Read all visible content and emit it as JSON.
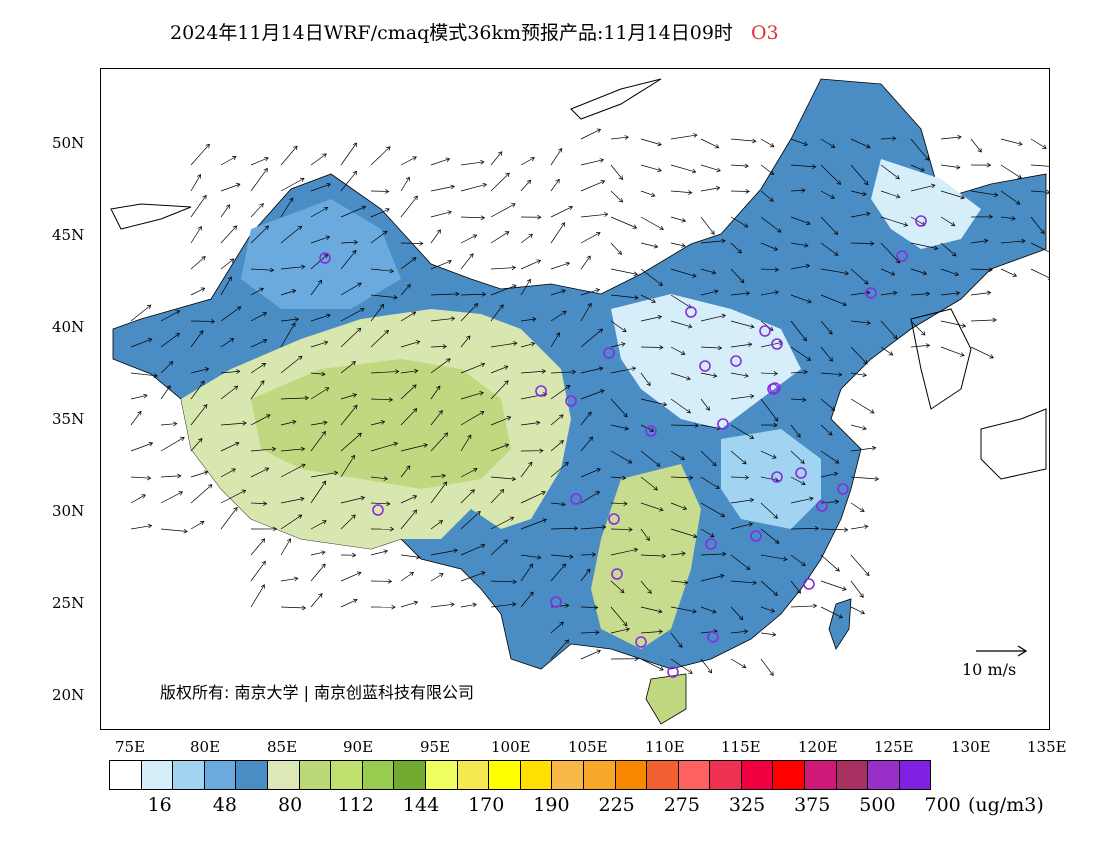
{
  "title": {
    "main": "2024年11月14日WRF/cmaq模式36km预报产品:11月14日09时",
    "species": "O3"
  },
  "map": {
    "lat_labels": [
      "50N",
      "45N",
      "40N",
      "35N",
      "30N",
      "25N",
      "20N"
    ],
    "lon_labels": [
      "75E",
      "80E",
      "85E",
      "90E",
      "95E",
      "100E",
      "105E",
      "110E",
      "115E",
      "120E",
      "125E",
      "130E",
      "135E"
    ],
    "copyright": "版权所有: 南京大学 | 南京创蓝科技有限公司",
    "wind_reference": "10 m/s",
    "colors": {
      "deep_blue": "#4a8cc4",
      "mid_blue": "#6aaade",
      "light_blue": "#a0d4f0",
      "pale_blue": "#d6eefa",
      "pale_green": "#d8e6b0",
      "green": "#c0d880",
      "dark_green": "#b0cc70",
      "station_marker": "#8a2be2",
      "ocean": "#ffffff"
    }
  },
  "legend": {
    "colors": [
      "#ffffff",
      "#d6eefa",
      "#a0d4f0",
      "#6aaade",
      "#4a8cc4",
      "#dde8b8",
      "#bcd878",
      "#c0e070",
      "#98cc50",
      "#70aa30",
      "#f0ff60",
      "#f5e850",
      "#ffff00",
      "#ffe000",
      "#f8b848",
      "#f8a828",
      "#f88800",
      "#f06030",
      "#ff6060",
      "#f03050",
      "#f00040",
      "#ff0000",
      "#d01878",
      "#a83060",
      "#9830c8",
      "#8020e0"
    ],
    "labels": [
      "16",
      "48",
      "80",
      "112",
      "144",
      "170",
      "190",
      "225",
      "275",
      "325",
      "375",
      "500",
      "700"
    ],
    "unit": "(ug/m3)"
  }
}
